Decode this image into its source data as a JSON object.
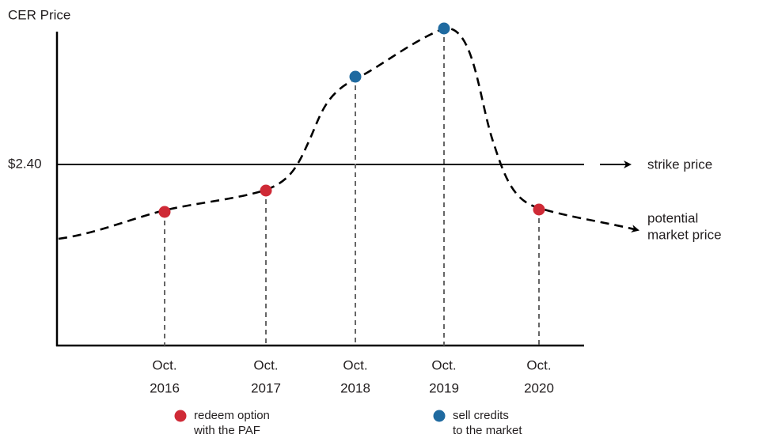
{
  "chart_data": {
    "type": "diagram",
    "y_axis_label": "CER Price",
    "strike_tick": "$2.40",
    "strike_label": "strike price",
    "market_label": [
      "potential",
      "market price"
    ],
    "categories": [
      {
        "month": "Oct.",
        "year": "2016"
      },
      {
        "month": "Oct.",
        "year": "2017"
      },
      {
        "month": "Oct.",
        "year": "2018"
      },
      {
        "month": "Oct.",
        "year": "2019"
      },
      {
        "month": "Oct.",
        "year": "2020"
      }
    ],
    "legend": [
      {
        "color": "#cf2a36",
        "lines": [
          "redeem option",
          "with the PAF"
        ]
      },
      {
        "color": "#1f6aa0",
        "lines": [
          "sell credits",
          "to the market"
        ]
      }
    ]
  }
}
